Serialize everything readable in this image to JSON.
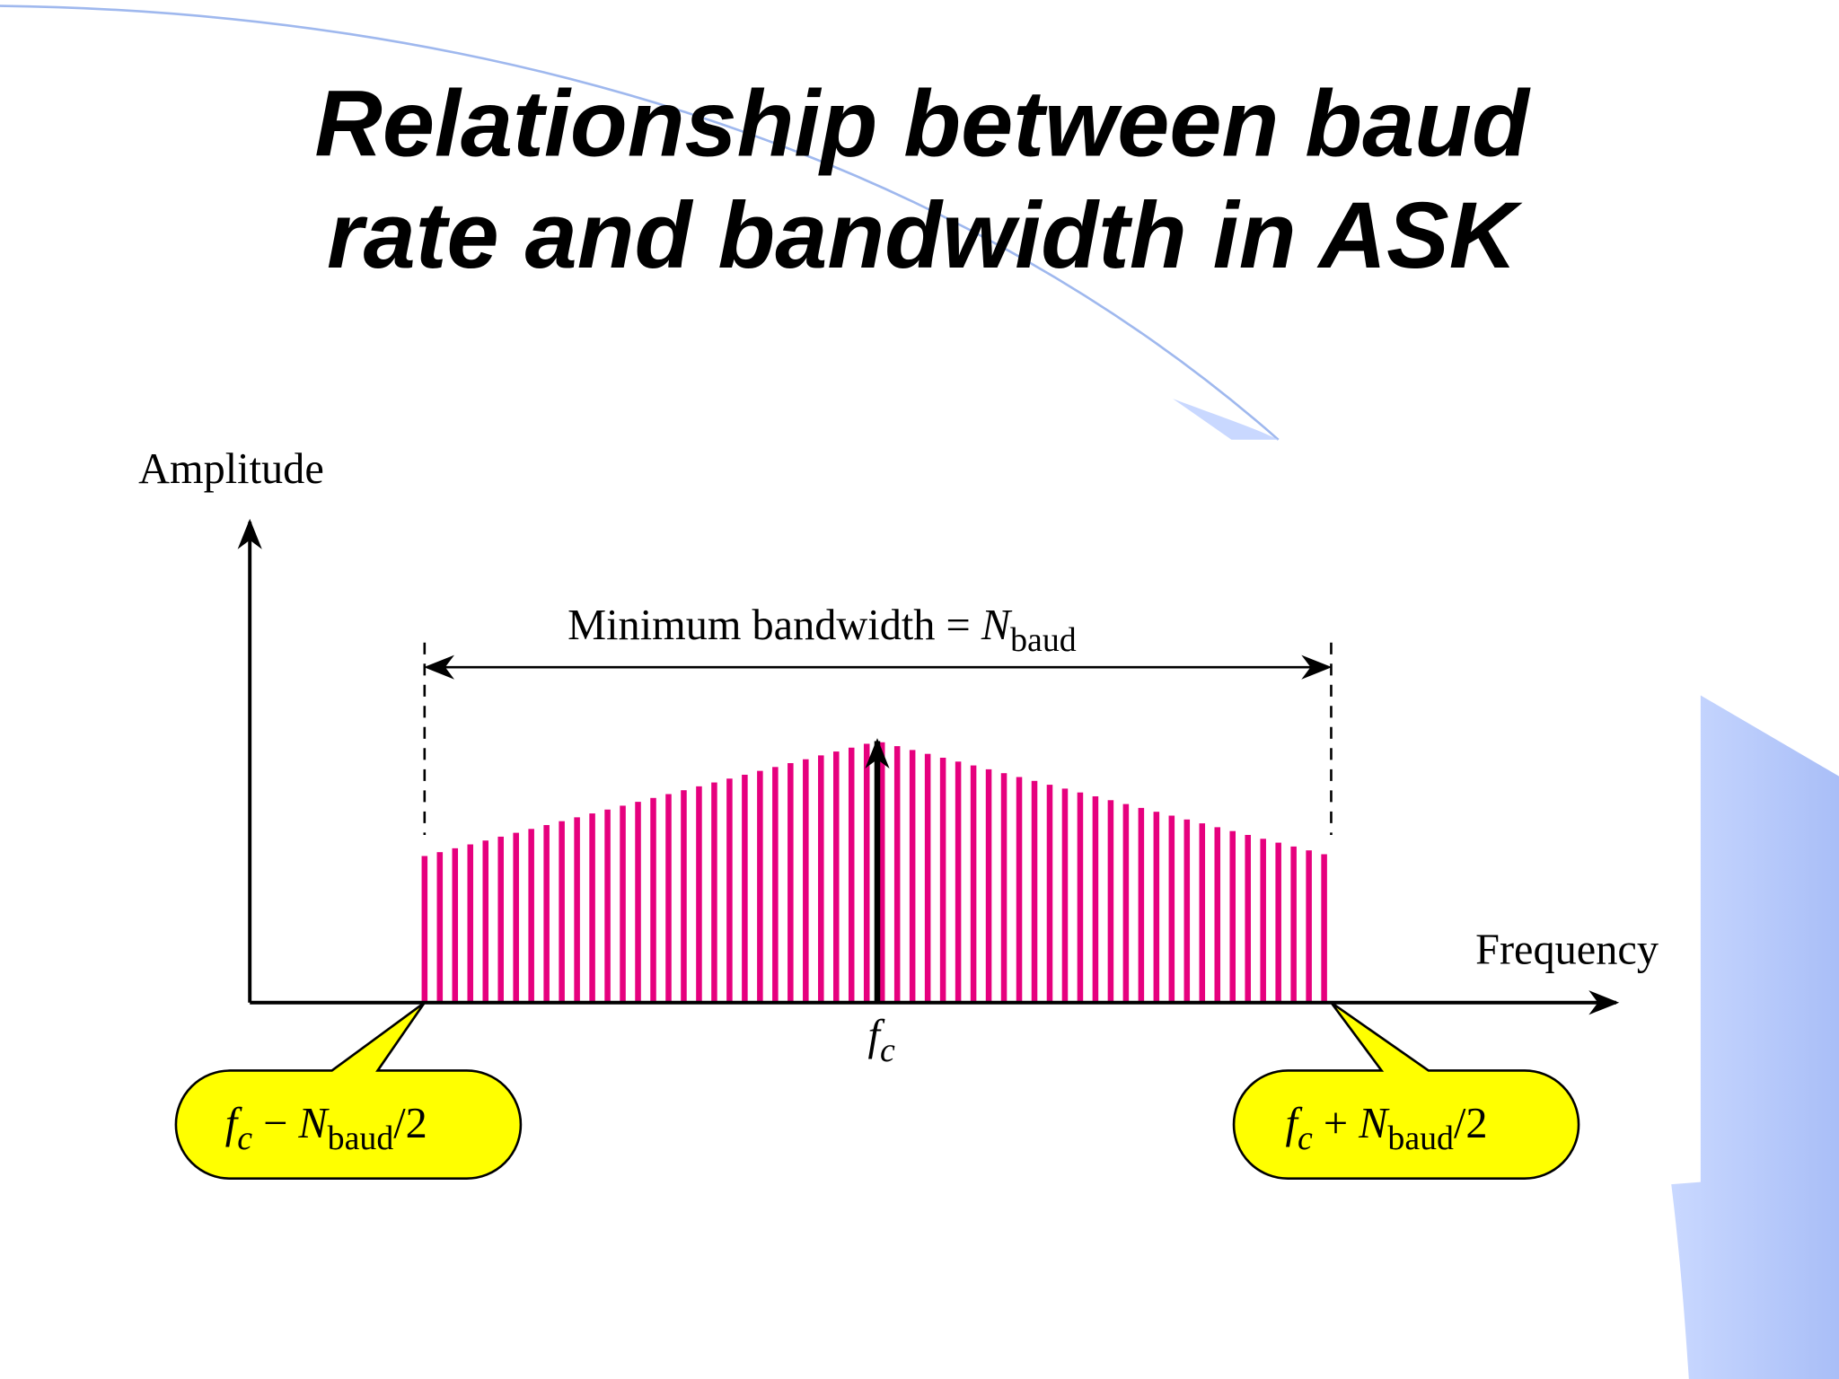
{
  "title": [
    "Relationship between baud",
    "rate and bandwidth in ASK"
  ],
  "diagram": {
    "y_axis_label": "Amplitude",
    "x_axis_label": "Frequency",
    "bandwidth_label": {
      "text": "Minimum bandwidth = ",
      "symbol": "N",
      "subscript": "baud"
    },
    "center_label": {
      "symbol": "f",
      "subscript": "c"
    },
    "left_callout": {
      "symbol": "f",
      "subscript": "c",
      "operator": " − ",
      "symbol2": "N",
      "subscript2": "baud",
      "suffix": "/2"
    },
    "right_callout": {
      "symbol": "f",
      "subscript": "c",
      "operator": " + ",
      "symbol2": "N",
      "subscript2": "baud",
      "suffix": "/2"
    }
  }
}
